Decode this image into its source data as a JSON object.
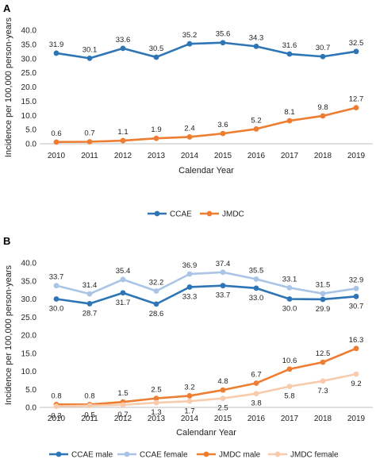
{
  "chart_data": [
    {
      "panel": "A",
      "type": "line",
      "categories": [
        "2010",
        "2011",
        "2012",
        "2013",
        "2014",
        "2015",
        "2016",
        "2017",
        "2018",
        "2019"
      ],
      "ylabel": "Incidence per 100,000 person-years",
      "xlabel": "Calendar Year",
      "ylim": [
        0,
        40
      ],
      "yticks": [
        "0.0",
        "5.0",
        "10.0",
        "15.0",
        "20.0",
        "25.0",
        "30.0",
        "35.0",
        "40.0"
      ],
      "grid": false,
      "legend_position": "bottom",
      "series": [
        {
          "name": "CCAE",
          "color": "#2E75B6",
          "label_position": "above",
          "values": [
            31.9,
            30.1,
            33.6,
            30.5,
            35.2,
            35.6,
            34.3,
            31.6,
            30.7,
            32.5
          ],
          "labels": [
            "31.9",
            "30.1",
            "33.6",
            "30.5",
            "35.2",
            "35.6",
            "34.3",
            "31.6",
            "30.7",
            "32.5"
          ]
        },
        {
          "name": "JMDC",
          "color": "#ED7D31",
          "label_position": "above",
          "values": [
            0.6,
            0.7,
            1.1,
            1.9,
            2.4,
            3.6,
            5.2,
            8.1,
            9.8,
            12.7
          ],
          "labels": [
            "0.6",
            "0.7",
            "1.1",
            "1.9",
            "2.4",
            "3.6",
            "5.2",
            "8.1",
            "9.8",
            "12.7"
          ]
        }
      ]
    },
    {
      "panel": "B",
      "type": "line",
      "categories": [
        "2010",
        "2011",
        "2012",
        "2013",
        "2014",
        "2015",
        "2016",
        "2017",
        "2018",
        "2019"
      ],
      "ylabel": "Incidence per 100,000 person-years",
      "xlabel": "Calendanr Year",
      "ylim": [
        0,
        40
      ],
      "yticks": [
        "0.0",
        "5.0",
        "10.0",
        "15.0",
        "20.0",
        "25.0",
        "30.0",
        "35.0",
        "40.0"
      ],
      "grid": false,
      "legend_position": "bottom",
      "series": [
        {
          "name": "CCAE male",
          "color": "#2E75B6",
          "label_position": "below",
          "values": [
            30.0,
            28.7,
            31.7,
            28.6,
            33.3,
            33.7,
            33.0,
            30.0,
            29.9,
            30.7
          ],
          "labels": [
            "30.0",
            "28.7",
            "31.7",
            "28.6",
            "33.3",
            "33.7",
            "33.0",
            "30.0",
            "29.9",
            "30.7"
          ]
        },
        {
          "name": "CCAE female",
          "color": "#A9C4E4",
          "label_position": "above",
          "values": [
            33.7,
            31.4,
            35.4,
            32.2,
            36.9,
            37.4,
            35.5,
            33.1,
            31.5,
            32.9
          ],
          "labels": [
            "33.7",
            "31.4",
            "35.4",
            "32.2",
            "36.9",
            "37.4",
            "35.5",
            "33.1",
            "31.5",
            "32.9"
          ]
        },
        {
          "name": "JMDC male",
          "color": "#ED7D31",
          "label_position": "above",
          "values": [
            0.8,
            0.8,
            1.5,
            2.5,
            3.2,
            4.8,
            6.7,
            10.6,
            12.5,
            16.3
          ],
          "labels": [
            "0.8",
            "0.8",
            "1.5",
            "2.5",
            "3.2",
            "4.8",
            "6.7",
            "10.6",
            "12.5",
            "16.3"
          ]
        },
        {
          "name": "JMDC female",
          "color": "#F8CBAD",
          "label_position": "below",
          "values": [
            0.3,
            0.5,
            0.7,
            1.3,
            1.7,
            2.5,
            3.8,
            5.8,
            7.3,
            9.2
          ],
          "labels": [
            "0.3",
            "0.5",
            "0.7",
            "1.3",
            "1.7",
            "2.5",
            "3.8",
            "5.8",
            "7.3",
            "9.2"
          ]
        }
      ]
    }
  ]
}
